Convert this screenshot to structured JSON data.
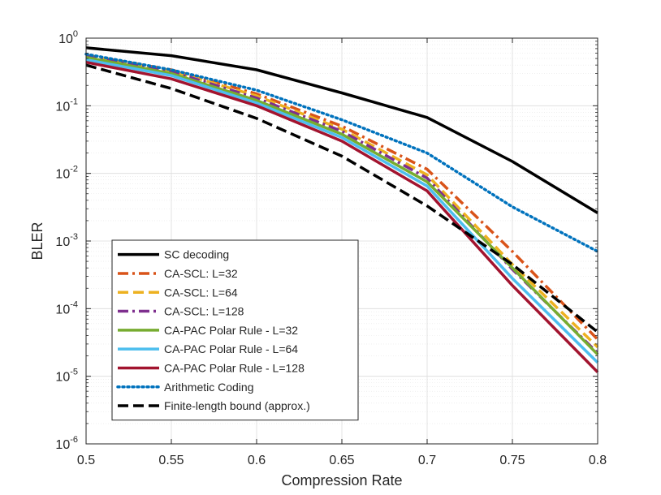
{
  "chart_data": {
    "type": "line",
    "title": "",
    "xlabel": "Compression Rate",
    "ylabel": "BLER",
    "yscale": "log",
    "xlim": [
      0.5,
      0.8
    ],
    "ylim_exponents": [
      -6,
      0
    ],
    "grid": true,
    "legend_position": "bottom-left",
    "xticks": [
      0.5,
      0.55,
      0.6,
      0.65,
      0.7,
      0.75,
      0.8
    ],
    "xtick_labels": [
      "0.5",
      "0.55",
      "0.6",
      "0.65",
      "0.7",
      "0.75",
      "0.8"
    ],
    "ytick_exponents": [
      0,
      -1,
      -2,
      -3,
      -4,
      -5,
      -6
    ],
    "ytick_bases": [
      "10",
      "10",
      "10",
      "10",
      "10",
      "10",
      "10"
    ],
    "ytick_exps": [
      "0",
      "-1",
      "-2",
      "-3",
      "-4",
      "-5",
      "-6"
    ],
    "x": [
      0.5,
      0.55,
      0.6,
      0.65,
      0.7,
      0.75,
      0.8
    ],
    "series": [
      {
        "name": "SC decoding",
        "color": "#000000",
        "dash": "solid",
        "width": 3.5,
        "values": [
          0.72,
          0.55,
          0.34,
          0.155,
          0.067,
          0.015,
          0.0026
        ]
      },
      {
        "name": "CA-SCL: L=32",
        "color": "#D95319",
        "dash": "dashdot",
        "width": 3.5,
        "values": [
          0.56,
          0.34,
          0.15,
          0.05,
          0.0115,
          0.0007,
          3.5e-05
        ]
      },
      {
        "name": "CA-SCL: L=64",
        "color": "#EDB120",
        "dash": "dashed",
        "width": 3.5,
        "values": [
          0.55,
          0.33,
          0.14,
          0.045,
          0.0095,
          0.00045,
          2.7e-05
        ]
      },
      {
        "name": "CA-SCL: L=128",
        "color": "#7E2F8E",
        "dash": "dashdot",
        "width": 3.5,
        "values": [
          0.54,
          0.32,
          0.13,
          0.042,
          0.0085,
          0.00038,
          2.2e-05
        ]
      },
      {
        "name": "CA-PAC Polar Rule - L=32",
        "color": "#77AC30",
        "dash": "solid",
        "width": 3.5,
        "values": [
          0.52,
          0.3,
          0.12,
          0.038,
          0.0075,
          0.0004,
          2.1e-05
        ]
      },
      {
        "name": "CA-PAC Polar Rule - L=64",
        "color": "#4DBEEE",
        "dash": "solid",
        "width": 3.5,
        "values": [
          0.48,
          0.28,
          0.11,
          0.034,
          0.0065,
          0.00028,
          1.6e-05
        ]
      },
      {
        "name": "CA-PAC Polar Rule - L=128",
        "color": "#A2142F",
        "dash": "solid",
        "width": 3.5,
        "values": [
          0.44,
          0.25,
          0.1,
          0.03,
          0.0055,
          0.00022,
          1.15e-05
        ]
      },
      {
        "name": "Arithmetic Coding",
        "color": "#0072BD",
        "dash": "dotted",
        "width": 3.5,
        "values": [
          0.58,
          0.34,
          0.17,
          0.062,
          0.02,
          0.0032,
          0.0007
        ]
      },
      {
        "name": "Finite-length bound (approx.)",
        "color": "#000000",
        "dash": "dashed",
        "width": 3.5,
        "values": [
          0.4,
          0.18,
          0.065,
          0.018,
          0.0033,
          0.00045,
          4.5e-05
        ]
      }
    ]
  }
}
